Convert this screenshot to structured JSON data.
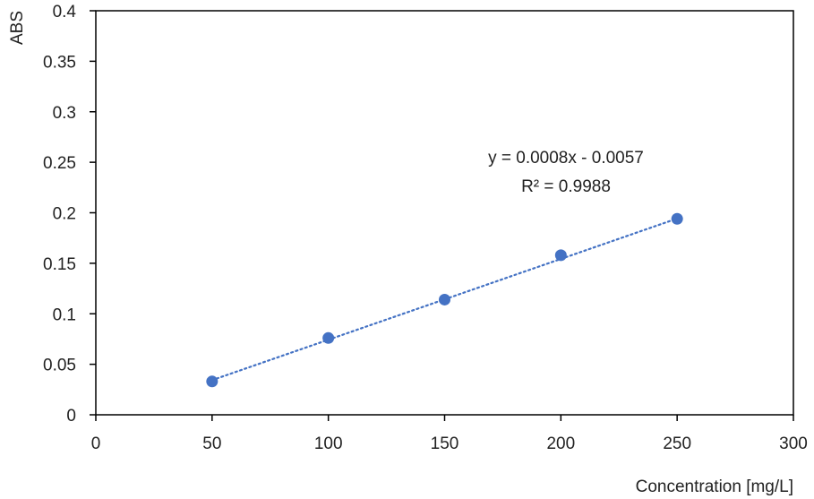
{
  "chart_data": {
    "type": "scatter",
    "title": "",
    "xlabel": "Concentration [mg/L]",
    "ylabel": "ABS",
    "xlim": [
      0,
      300
    ],
    "ylim": [
      0,
      0.4
    ],
    "xticks": [
      "0",
      "50",
      "100",
      "150",
      "200",
      "250",
      "300"
    ],
    "yticks": [
      "0",
      "0.05",
      "0.1",
      "0.15",
      "0.2",
      "0.25",
      "0.3",
      "0.35",
      "0.4"
    ],
    "grid": false,
    "series": [
      {
        "x": [
          50,
          100,
          150,
          200,
          250
        ],
        "y": [
          0.033,
          0.076,
          0.114,
          0.158,
          0.194
        ],
        "color": "#4472C4"
      }
    ],
    "trendline": {
      "type": "linear",
      "style": "dotted",
      "color": "#4472C4",
      "x_range": [
        50,
        250
      ],
      "slope": 0.0008,
      "intercept": -0.0057,
      "equation": "y = 0.0008x - 0.0057",
      "r_squared": "R² = 0.9988"
    }
  }
}
